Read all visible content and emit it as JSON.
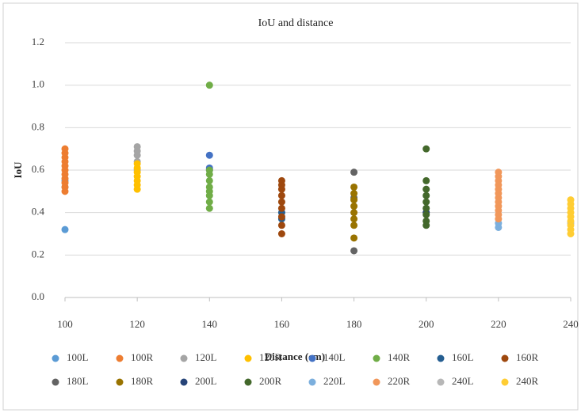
{
  "chart_data": {
    "type": "scatter",
    "title": "IoU and distance",
    "x_label": "Distance (cm)",
    "y_label": "IoU",
    "xlim": [
      100,
      240
    ],
    "xticks": [
      100,
      120,
      140,
      160,
      180,
      200,
      220,
      240
    ],
    "ylim": [
      0,
      1.2
    ],
    "yticks": [
      {
        "value": 0,
        "label": "0.0"
      },
      0.2,
      0.4,
      0.6,
      0.8,
      {
        "value": 1,
        "label": "1.0"
      },
      1.2
    ],
    "grid": true,
    "series": [
      {
        "name": "100L",
        "color": "#5b9bd5",
        "x": [
          100,
          100,
          100
        ],
        "y": [
          0.32,
          0.52,
          0.55
        ]
      },
      {
        "name": "100R",
        "color": "#ed7d31",
        "x": [
          100,
          100,
          100,
          100,
          100,
          100,
          100,
          100,
          100,
          100,
          100
        ],
        "y": [
          0.5,
          0.52,
          0.54,
          0.56,
          0.58,
          0.6,
          0.62,
          0.64,
          0.66,
          0.68,
          0.7
        ]
      },
      {
        "name": "120L",
        "color": "#a5a5a5",
        "x": [
          120,
          120,
          120,
          120,
          120
        ],
        "y": [
          0.6,
          0.64,
          0.67,
          0.69,
          0.71
        ]
      },
      {
        "name": "120R",
        "color": "#ffc000",
        "x": [
          120,
          120,
          120,
          120,
          120,
          120,
          120
        ],
        "y": [
          0.51,
          0.53,
          0.55,
          0.57,
          0.59,
          0.61,
          0.63
        ]
      },
      {
        "name": "140L",
        "color": "#4472c4",
        "x": [
          140,
          140,
          140
        ],
        "y": [
          0.67,
          0.61,
          0.6
        ]
      },
      {
        "name": "140R",
        "color": "#70ad47",
        "x": [
          140,
          140,
          140,
          140,
          140,
          140,
          140,
          140,
          140
        ],
        "y": [
          1.0,
          0.42,
          0.45,
          0.48,
          0.5,
          0.52,
          0.55,
          0.58,
          0.6
        ]
      },
      {
        "name": "160L",
        "color": "#255e91",
        "x": [
          160,
          160
        ],
        "y": [
          0.37,
          0.4
        ]
      },
      {
        "name": "160R",
        "color": "#9e480e",
        "x": [
          160,
          160,
          160,
          160,
          160,
          160,
          160,
          160,
          160
        ],
        "y": [
          0.3,
          0.34,
          0.38,
          0.42,
          0.45,
          0.48,
          0.51,
          0.53,
          0.55
        ]
      },
      {
        "name": "180L",
        "color": "#636363",
        "x": [
          180,
          180,
          180
        ],
        "y": [
          0.22,
          0.59,
          0.47
        ]
      },
      {
        "name": "180R",
        "color": "#997300",
        "x": [
          180,
          180,
          180,
          180,
          180,
          180,
          180,
          180
        ],
        "y": [
          0.28,
          0.34,
          0.37,
          0.4,
          0.43,
          0.46,
          0.49,
          0.52
        ]
      },
      {
        "name": "200L",
        "color": "#264478",
        "x": [
          200
        ],
        "y": [
          0.4
        ]
      },
      {
        "name": "200R",
        "color": "#43682b",
        "x": [
          200,
          200,
          200,
          200,
          200,
          200,
          200,
          200,
          200
        ],
        "y": [
          0.7,
          0.55,
          0.51,
          0.48,
          0.45,
          0.42,
          0.39,
          0.36,
          0.34
        ]
      },
      {
        "name": "220L",
        "color": "#7cafdd",
        "x": [
          220,
          220
        ],
        "y": [
          0.33,
          0.35
        ]
      },
      {
        "name": "220R",
        "color": "#f1975a",
        "x": [
          220,
          220,
          220,
          220,
          220,
          220,
          220,
          220,
          220,
          220,
          220,
          220
        ],
        "y": [
          0.37,
          0.39,
          0.41,
          0.43,
          0.45,
          0.47,
          0.49,
          0.51,
          0.53,
          0.55,
          0.57,
          0.59
        ]
      },
      {
        "name": "240L",
        "color": "#b7b7b7",
        "x": [
          240
        ],
        "y": [
          0.35
        ]
      },
      {
        "name": "240R",
        "color": "#ffcd33",
        "x": [
          240,
          240,
          240,
          240,
          240,
          240,
          240,
          240,
          240
        ],
        "y": [
          0.3,
          0.32,
          0.34,
          0.36,
          0.38,
          0.4,
          0.42,
          0.44,
          0.46
        ]
      }
    ]
  }
}
